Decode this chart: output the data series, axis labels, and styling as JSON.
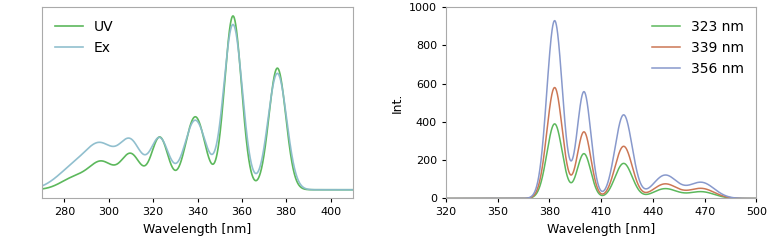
{
  "left_panel": {
    "xlim": [
      270,
      410
    ],
    "xticks": [
      280,
      300,
      320,
      340,
      360,
      380,
      400
    ],
    "xlabel": "Wavelength [nm]",
    "uv_color": "#5cb85c",
    "ex_color": "#8bbccc",
    "legend_labels": [
      "UV",
      "Ex"
    ],
    "uv_peaks": [
      {
        "mu": 356,
        "sigma": 3.8,
        "amp": 1.0
      },
      {
        "mu": 376,
        "sigma": 3.8,
        "amp": 0.7
      },
      {
        "mu": 339,
        "sigma": 4.5,
        "amp": 0.42
      },
      {
        "mu": 323,
        "sigma": 3.8,
        "amp": 0.3
      },
      {
        "mu": 310,
        "sigma": 4.5,
        "amp": 0.2
      },
      {
        "mu": 297,
        "sigma": 5.5,
        "amp": 0.15
      },
      {
        "mu": 285,
        "sigma": 6.5,
        "amp": 0.07
      }
    ],
    "ex_peaks": [
      {
        "mu": 356,
        "sigma": 4.2,
        "amp": 0.95
      },
      {
        "mu": 376,
        "sigma": 4.2,
        "amp": 0.67
      },
      {
        "mu": 339,
        "sigma": 5.0,
        "amp": 0.4
      },
      {
        "mu": 323,
        "sigma": 4.2,
        "amp": 0.29
      },
      {
        "mu": 310,
        "sigma": 5.0,
        "amp": 0.26
      },
      {
        "mu": 297,
        "sigma": 6.5,
        "amp": 0.22
      },
      {
        "mu": 285,
        "sigma": 8.0,
        "amp": 0.13
      }
    ]
  },
  "right_panel": {
    "xlim": [
      320,
      500
    ],
    "ylim": [
      0,
      1000
    ],
    "xticks": [
      320,
      350,
      380,
      410,
      440,
      470,
      500
    ],
    "yticks": [
      0,
      200,
      400,
      600,
      800,
      1000
    ],
    "xlabel": "Wavelength [nm]",
    "ylabel": "Int.",
    "colors": [
      "#5cb85c",
      "#cc7755",
      "#8899cc"
    ],
    "legend_labels": [
      "323 nm",
      "339 nm",
      "356 nm"
    ],
    "em_peaks": [
      {
        "mu": 383,
        "sigma": 4.5
      },
      {
        "mu": 400,
        "sigma": 4.0
      },
      {
        "mu": 423,
        "sigma": 5.0
      },
      {
        "mu": 447,
        "sigma": 7.0
      },
      {
        "mu": 468,
        "sigma": 7.5
      }
    ],
    "em_rel_amps": [
      1.0,
      0.6,
      0.47,
      0.13,
      0.09
    ],
    "em_scales": [
      390,
      580,
      930
    ]
  }
}
